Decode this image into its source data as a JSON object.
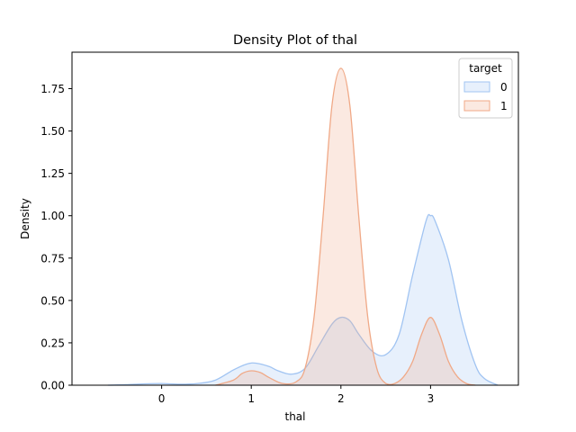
{
  "chart_data": {
    "type": "area",
    "title": "Density Plot of thal",
    "xlabel": "thal",
    "ylabel": "Density",
    "xlim": [
      -1.0,
      3.98
    ],
    "ylim": [
      0,
      1.965
    ],
    "x_ticks": [
      0,
      1,
      2,
      3
    ],
    "y_ticks": [
      0.0,
      0.25,
      0.5,
      0.75,
      1.0,
      1.25,
      1.5,
      1.75
    ],
    "y_tick_labels": [
      "0.00",
      "0.25",
      "0.50",
      "0.75",
      "1.00",
      "1.25",
      "1.50",
      "1.75"
    ],
    "grid": false,
    "legend": {
      "title": "target",
      "placement": "top-right",
      "entries": [
        "0",
        "1"
      ]
    },
    "series": [
      {
        "name": "0",
        "color": "#a1c4f2",
        "fill": "#e6effc",
        "x": [
          -0.6,
          -0.4,
          -0.2,
          0.0,
          0.2,
          0.4,
          0.6,
          0.8,
          0.95,
          1.05,
          1.2,
          1.3,
          1.45,
          1.6,
          1.75,
          1.9,
          2.0,
          2.1,
          2.2,
          2.35,
          2.5,
          2.65,
          2.8,
          2.95,
          3.0,
          3.05,
          3.2,
          3.35,
          3.5,
          3.6,
          3.75
        ],
        "y": [
          0.0,
          0.003,
          0.008,
          0.01,
          0.006,
          0.01,
          0.03,
          0.09,
          0.125,
          0.13,
          0.11,
          0.085,
          0.065,
          0.1,
          0.23,
          0.36,
          0.4,
          0.38,
          0.3,
          0.2,
          0.18,
          0.3,
          0.65,
          0.97,
          1.0,
          0.97,
          0.74,
          0.38,
          0.12,
          0.04,
          0.0
        ]
      },
      {
        "name": "1",
        "color": "#f0a987",
        "fill": "#fbe1d6",
        "x": [
          0.6,
          0.8,
          0.9,
          1.0,
          1.1,
          1.2,
          1.35,
          1.5,
          1.6,
          1.7,
          1.8,
          1.9,
          2.0,
          2.1,
          2.2,
          2.3,
          2.4,
          2.5,
          2.6,
          2.7,
          2.8,
          2.9,
          3.0,
          3.1,
          3.2,
          3.3,
          3.4,
          3.5
        ],
        "y": [
          0.0,
          0.03,
          0.07,
          0.085,
          0.075,
          0.045,
          0.01,
          0.02,
          0.1,
          0.4,
          0.99,
          1.65,
          1.87,
          1.65,
          0.99,
          0.4,
          0.1,
          0.01,
          0.01,
          0.05,
          0.14,
          0.3,
          0.4,
          0.3,
          0.14,
          0.05,
          0.01,
          0.0
        ]
      }
    ]
  }
}
